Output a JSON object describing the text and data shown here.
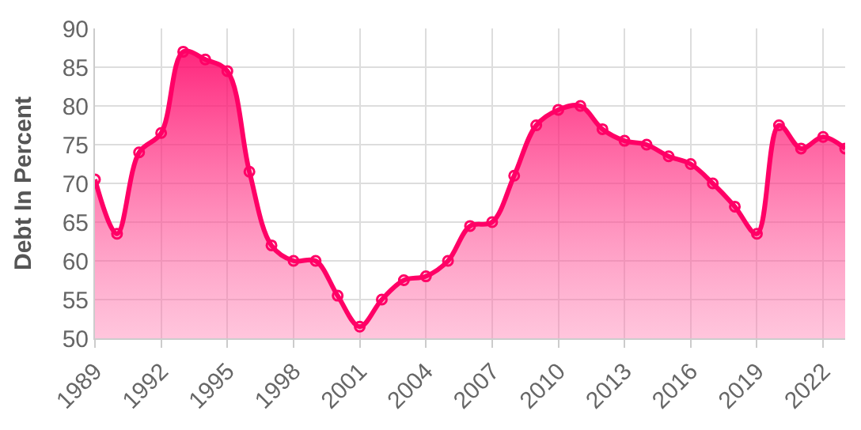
{
  "chart_data": {
    "type": "area",
    "ylabel": "Debt In Percent",
    "x": [
      1989,
      1990,
      1991,
      1992,
      1993,
      1994,
      1995,
      1996,
      1997,
      1998,
      1999,
      2000,
      2001,
      2002,
      2003,
      2004,
      2005,
      2006,
      2007,
      2008,
      2009,
      2010,
      2011,
      2012,
      2013,
      2014,
      2015,
      2016,
      2017,
      2018,
      2019,
      2020,
      2021,
      2022,
      2023
    ],
    "series": [
      {
        "color": "#ff0066",
        "values": [
          70.5,
          63.5,
          74,
          76.5,
          87,
          86,
          84.5,
          71.5,
          62,
          60,
          60,
          55.5,
          51.5,
          55,
          57.5,
          58,
          60,
          64.5,
          65,
          71,
          77.5,
          79.5,
          80,
          77,
          75.5,
          75,
          73.5,
          72.5,
          70,
          67,
          63.5,
          77.5,
          74.5,
          76,
          74.5
        ]
      }
    ],
    "xlim": [
      1989,
      2023
    ],
    "xticks": [
      1989,
      1992,
      1995,
      1998,
      2001,
      2004,
      2007,
      2010,
      2013,
      2016,
      2019,
      2022
    ],
    "ylim": [
      50,
      90
    ],
    "yticks": [
      50,
      55,
      60,
      65,
      70,
      75,
      80,
      85,
      90
    ],
    "grid": true,
    "marker": "circle",
    "line_style": "solid"
  }
}
